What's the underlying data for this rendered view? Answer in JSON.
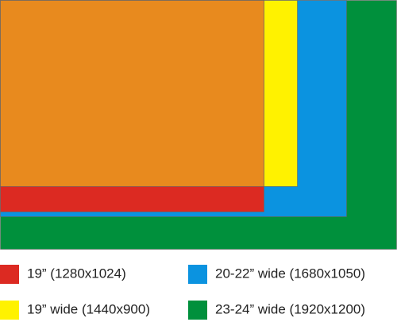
{
  "legend": [
    {
      "label": "19” (1280x1024)",
      "color": "#dc2a22"
    },
    {
      "label": "20-22” wide (1680x1050)",
      "color": "#0b93e0"
    },
    {
      "label": "19” wide (1440x900)",
      "color": "#fff200"
    },
    {
      "label": "23-24” wide (1920x1200)",
      "color": "#00903c"
    }
  ]
}
